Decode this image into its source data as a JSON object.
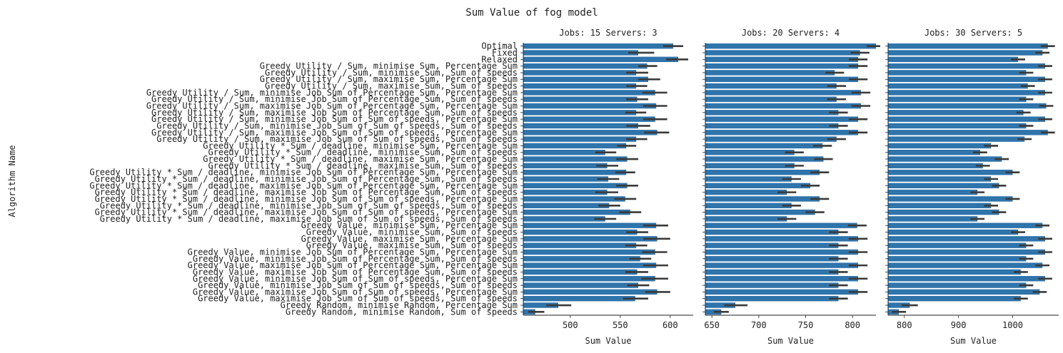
{
  "chart_data": {
    "type": "bar",
    "orientation": "horizontal",
    "title": "Sum Value of fog model",
    "ylabel": "Algorithm Name",
    "xlabel": "Sum Value",
    "bar_color": "#2f74ab",
    "error_color": "#3a3a3a",
    "categories": [
      "Optimal",
      "Fixed",
      "Relaxed",
      "Greedy Utility / Sum, minimise Sum, Percentage Sum",
      "Greedy Utility / Sum, minimise Sum, Sum of speeds",
      "Greedy Utility / Sum, maximise Sum, Percentage Sum",
      "Greedy Utility / Sum, maximise Sum, Sum of speeds",
      "Greedy Utility / Sum, minimise Job Sum of Percentage Sum, Percentage Sum",
      "Greedy Utility / Sum, minimise Job Sum of Percentage Sum, Sum of speeds",
      "Greedy Utility / Sum, maximise Job Sum of Percentage Sum, Percentage Sum",
      "Greedy Utility / Sum, maximise Job Sum of Percentage Sum, Sum of speeds",
      "Greedy Utility / Sum, minimise Job Sum of Sum of speeds, Percentage Sum",
      "Greedy Utility / Sum, minimise Job Sum of Sum of speeds, Sum of speeds",
      "Greedy Utility / Sum, maximise Job Sum of Sum of speeds, Percentage Sum",
      "Greedy Utility / Sum, maximise Job Sum of Sum of speeds, Sum of speeds",
      "Greedy Utility * Sum / deadline, minimise Sum, Percentage Sum",
      "Greedy Utility * Sum / deadline, minimise Sum, Sum of speeds",
      "Greedy Utility * Sum / deadline, maximise Sum, Percentage Sum",
      "Greedy Utility * Sum / deadline, maximise Sum, Sum of speeds",
      "Greedy Utility * Sum / deadline, minimise Job Sum of Percentage Sum, Percentage Sum",
      "Greedy Utility * Sum / deadline, minimise Job Sum of Percentage Sum, Sum of speeds",
      "Greedy Utility * Sum / deadline, maximise Job Sum of Percentage Sum, Percentage Sum",
      "Greedy Utility * Sum / deadline, maximise Job Sum of Percentage Sum, Sum of speeds",
      "Greedy Utility * Sum / deadline, minimise Job Sum of Sum of speeds, Percentage Sum",
      "Greedy Utility * Sum / deadline, minimise Job Sum of Sum of speeds, Sum of speeds",
      "Greedy Utility * Sum / deadline, maximise Job Sum of Sum of speeds, Percentage Sum",
      "Greedy Utility * Sum / deadline, maximise Job Sum of Sum of speeds, Sum of speeds",
      "Greedy Value, minimise Sum, Percentage Sum",
      "Greedy Value, minimise Sum, Sum of speeds",
      "Greedy Value, maximise Sum, Percentage Sum",
      "Greedy Value, maximise Sum, Sum of speeds",
      "Greedy Value, minimise Job Sum of Percentage Sum, Percentage Sum",
      "Greedy Value, minimise Job Sum of Percentage Sum, Sum of speeds",
      "Greedy Value, maximise Job Sum of Percentage Sum, Percentage Sum",
      "Greedy Value, maximise Job Sum of Percentage Sum, Sum of speeds",
      "Greedy Value, minimise Job Sum of Sum of speeds, Percentage Sum",
      "Greedy Value, minimise Job Sum of Sum of speeds, Sum of speeds",
      "Greedy Value, maximise Job Sum of Sum of speeds, Percentage Sum",
      "Greedy Value, maximise Job Sum of Sum of speeds, Sum of speeds",
      "Greedy Random, minimise Random, Percentage Sum",
      "Greedy Random, minimise Random, Sum of speeds"
    ],
    "panels": [
      {
        "title": "Jobs: 15 Servers: 3",
        "xlim": [
          453,
          623
        ],
        "ticks": [
          500,
          550,
          600
        ],
        "values": [
          603,
          568,
          608,
          577,
          566,
          578,
          566,
          585,
          567,
          586,
          566,
          585,
          568,
          587,
          566,
          556,
          535,
          557,
          537,
          556,
          538,
          557,
          537,
          555,
          539,
          560,
          535,
          586,
          567,
          587,
          566,
          585,
          570,
          586,
          567,
          585,
          568,
          587,
          565,
          488,
          465
        ],
        "err": [
          [
            593,
            613
          ],
          [
            558,
            584
          ],
          [
            596,
            618
          ],
          [
            568,
            587
          ],
          [
            556,
            578
          ],
          [
            568,
            590
          ],
          [
            556,
            577
          ],
          [
            572,
            597
          ],
          [
            556,
            578
          ],
          [
            573,
            597
          ],
          [
            555,
            576
          ],
          [
            573,
            597
          ],
          [
            556,
            580
          ],
          [
            574,
            599
          ],
          [
            556,
            577
          ],
          [
            547,
            566
          ],
          [
            525,
            546
          ],
          [
            546,
            568
          ],
          [
            526,
            548
          ],
          [
            545,
            565
          ],
          [
            527,
            549
          ],
          [
            546,
            568
          ],
          [
            525,
            548
          ],
          [
            544,
            566
          ],
          [
            528,
            550
          ],
          [
            549,
            571
          ],
          [
            524,
            546
          ],
          [
            573,
            598
          ],
          [
            556,
            578
          ],
          [
            573,
            600
          ],
          [
            555,
            577
          ],
          [
            572,
            597
          ],
          [
            559,
            581
          ],
          [
            573,
            598
          ],
          [
            555,
            578
          ],
          [
            571,
            598
          ],
          [
            557,
            579
          ],
          [
            575,
            600
          ],
          [
            553,
            578
          ],
          [
            476,
            501
          ],
          [
            458,
            474
          ]
        ]
      },
      {
        "title": "Jobs: 20 Servers: 4",
        "xlim": [
          643,
          825
        ],
        "ticks": [
          650,
          700,
          750,
          800
        ],
        "values": [
          825,
          808,
          806,
          806,
          781,
          806,
          783,
          809,
          783,
          809,
          785,
          806,
          785,
          806,
          783,
          768,
          738,
          769,
          738,
          765,
          735,
          755,
          730,
          765,
          735,
          760,
          730,
          805,
          785,
          806,
          785,
          806,
          785,
          806,
          785,
          806,
          785,
          806,
          785,
          675,
          660
        ],
        "err": [
          [
            815,
            835
          ],
          [
            798,
            818
          ],
          [
            796,
            816
          ],
          [
            796,
            816
          ],
          [
            771,
            791
          ],
          [
            796,
            816
          ],
          [
            773,
            793
          ],
          [
            799,
            819
          ],
          [
            773,
            793
          ],
          [
            799,
            819
          ],
          [
            775,
            795
          ],
          [
            796,
            816
          ],
          [
            775,
            795
          ],
          [
            796,
            816
          ],
          [
            773,
            793
          ],
          [
            758,
            778
          ],
          [
            728,
            748
          ],
          [
            759,
            779
          ],
          [
            728,
            748
          ],
          [
            755,
            775
          ],
          [
            725,
            745
          ],
          [
            745,
            765
          ],
          [
            720,
            740
          ],
          [
            755,
            775
          ],
          [
            725,
            745
          ],
          [
            750,
            770
          ],
          [
            720,
            740
          ],
          [
            795,
            815
          ],
          [
            775,
            795
          ],
          [
            796,
            816
          ],
          [
            775,
            795
          ],
          [
            796,
            816
          ],
          [
            775,
            795
          ],
          [
            796,
            816
          ],
          [
            775,
            795
          ],
          [
            796,
            816
          ],
          [
            775,
            795
          ],
          [
            796,
            816
          ],
          [
            775,
            795
          ],
          [
            663,
            688
          ],
          [
            652,
            668
          ]
        ]
      },
      {
        "title": "Jobs: 30 Servers: 5",
        "xlim": [
          770,
          1085
        ],
        "ticks": [
          800,
          900,
          1000
        ],
        "values": [
          1065,
          1055,
          1010,
          1060,
          1025,
          1060,
          1028,
          1060,
          1025,
          1062,
          1020,
          1060,
          1025,
          1065,
          1022,
          960,
          940,
          980,
          945,
          1000,
          960,
          975,
          935,
          1000,
          960,
          975,
          935,
          1055,
          1010,
          1060,
          1025,
          1060,
          1025,
          1055,
          1015,
          1060,
          1025,
          1050,
          1015,
          810,
          790
        ],
        "err": [
          [
            1052,
            1078
          ],
          [
            1042,
            1068
          ],
          [
            997,
            1023
          ],
          [
            1047,
            1073
          ],
          [
            1012,
            1038
          ],
          [
            1047,
            1073
          ],
          [
            1015,
            1041
          ],
          [
            1047,
            1073
          ],
          [
            1012,
            1038
          ],
          [
            1049,
            1075
          ],
          [
            1007,
            1033
          ],
          [
            1047,
            1073
          ],
          [
            1012,
            1038
          ],
          [
            1052,
            1078
          ],
          [
            1009,
            1035
          ],
          [
            947,
            973
          ],
          [
            927,
            953
          ],
          [
            967,
            993
          ],
          [
            932,
            958
          ],
          [
            987,
            1013
          ],
          [
            947,
            973
          ],
          [
            962,
            988
          ],
          [
            922,
            948
          ],
          [
            987,
            1013
          ],
          [
            947,
            973
          ],
          [
            962,
            988
          ],
          [
            922,
            948
          ],
          [
            1042,
            1068
          ],
          [
            997,
            1023
          ],
          [
            1047,
            1073
          ],
          [
            1012,
            1038
          ],
          [
            1047,
            1073
          ],
          [
            1012,
            1038
          ],
          [
            1042,
            1068
          ],
          [
            1002,
            1028
          ],
          [
            1047,
            1073
          ],
          [
            1012,
            1038
          ],
          [
            1037,
            1063
          ],
          [
            1002,
            1028
          ],
          [
            795,
            825
          ],
          [
            777,
            803
          ]
        ]
      }
    ]
  }
}
